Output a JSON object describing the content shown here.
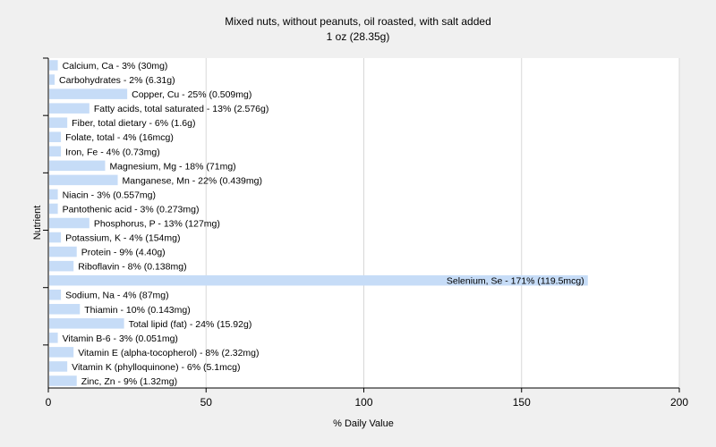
{
  "chart_data": {
    "type": "bar",
    "orientation": "horizontal",
    "title": "Mixed nuts, without peanuts, oil roasted, with salt added",
    "subtitle": "1 oz (28.35g)",
    "xlabel": "% Daily Value",
    "ylabel": "Nutrient",
    "xlim": [
      0,
      200
    ],
    "xticks": [
      0,
      50,
      100,
      150,
      200
    ],
    "grid": true,
    "bar_color": "#c6dcf7",
    "categories": [
      "Calcium, Ca",
      "Carbohydrates",
      "Copper, Cu",
      "Fatty acids, total saturated",
      "Fiber, total dietary",
      "Folate, total",
      "Iron, Fe",
      "Magnesium, Mg",
      "Manganese, Mn",
      "Niacin",
      "Pantothenic acid",
      "Phosphorus, P",
      "Potassium, K",
      "Protein",
      "Riboflavin",
      "Selenium, Se",
      "Sodium, Na",
      "Thiamin",
      "Total lipid (fat)",
      "Vitamin B-6",
      "Vitamin E (alpha-tocopherol)",
      "Vitamin K (phylloquinone)",
      "Zinc, Zn"
    ],
    "values": [
      3,
      2,
      25,
      13,
      6,
      4,
      4,
      18,
      22,
      3,
      3,
      13,
      4,
      9,
      8,
      171,
      4,
      10,
      24,
      3,
      8,
      6,
      9
    ],
    "labels": [
      "Calcium, Ca - 3% (30mg)",
      "Carbohydrates - 2% (6.31g)",
      "Copper, Cu - 25% (0.509mg)",
      "Fatty acids, total saturated - 13% (2.576g)",
      "Fiber, total dietary - 6% (1.6g)",
      "Folate, total - 4% (16mcg)",
      "Iron, Fe - 4% (0.73mg)",
      "Magnesium, Mg - 18% (71mg)",
      "Manganese, Mn - 22% (0.439mg)",
      "Niacin - 3% (0.557mg)",
      "Pantothenic acid - 3% (0.273mg)",
      "Phosphorus, P - 13% (127mg)",
      "Potassium, K - 4% (154mg)",
      "Protein - 9% (4.40g)",
      "Riboflavin - 8% (0.138mg)",
      "Selenium, Se - 171% (119.5mcg)",
      "Sodium, Na - 4% (87mg)",
      "Thiamin - 10% (0.143mg)",
      "Total lipid (fat) - 24% (15.92g)",
      "Vitamin B-6 - 3% (0.051mg)",
      "Vitamin E (alpha-tocopherol) - 8% (2.32mg)",
      "Vitamin K (phylloquinone) - 6% (5.1mcg)",
      "Zinc, Zn - 9% (1.32mg)"
    ]
  }
}
